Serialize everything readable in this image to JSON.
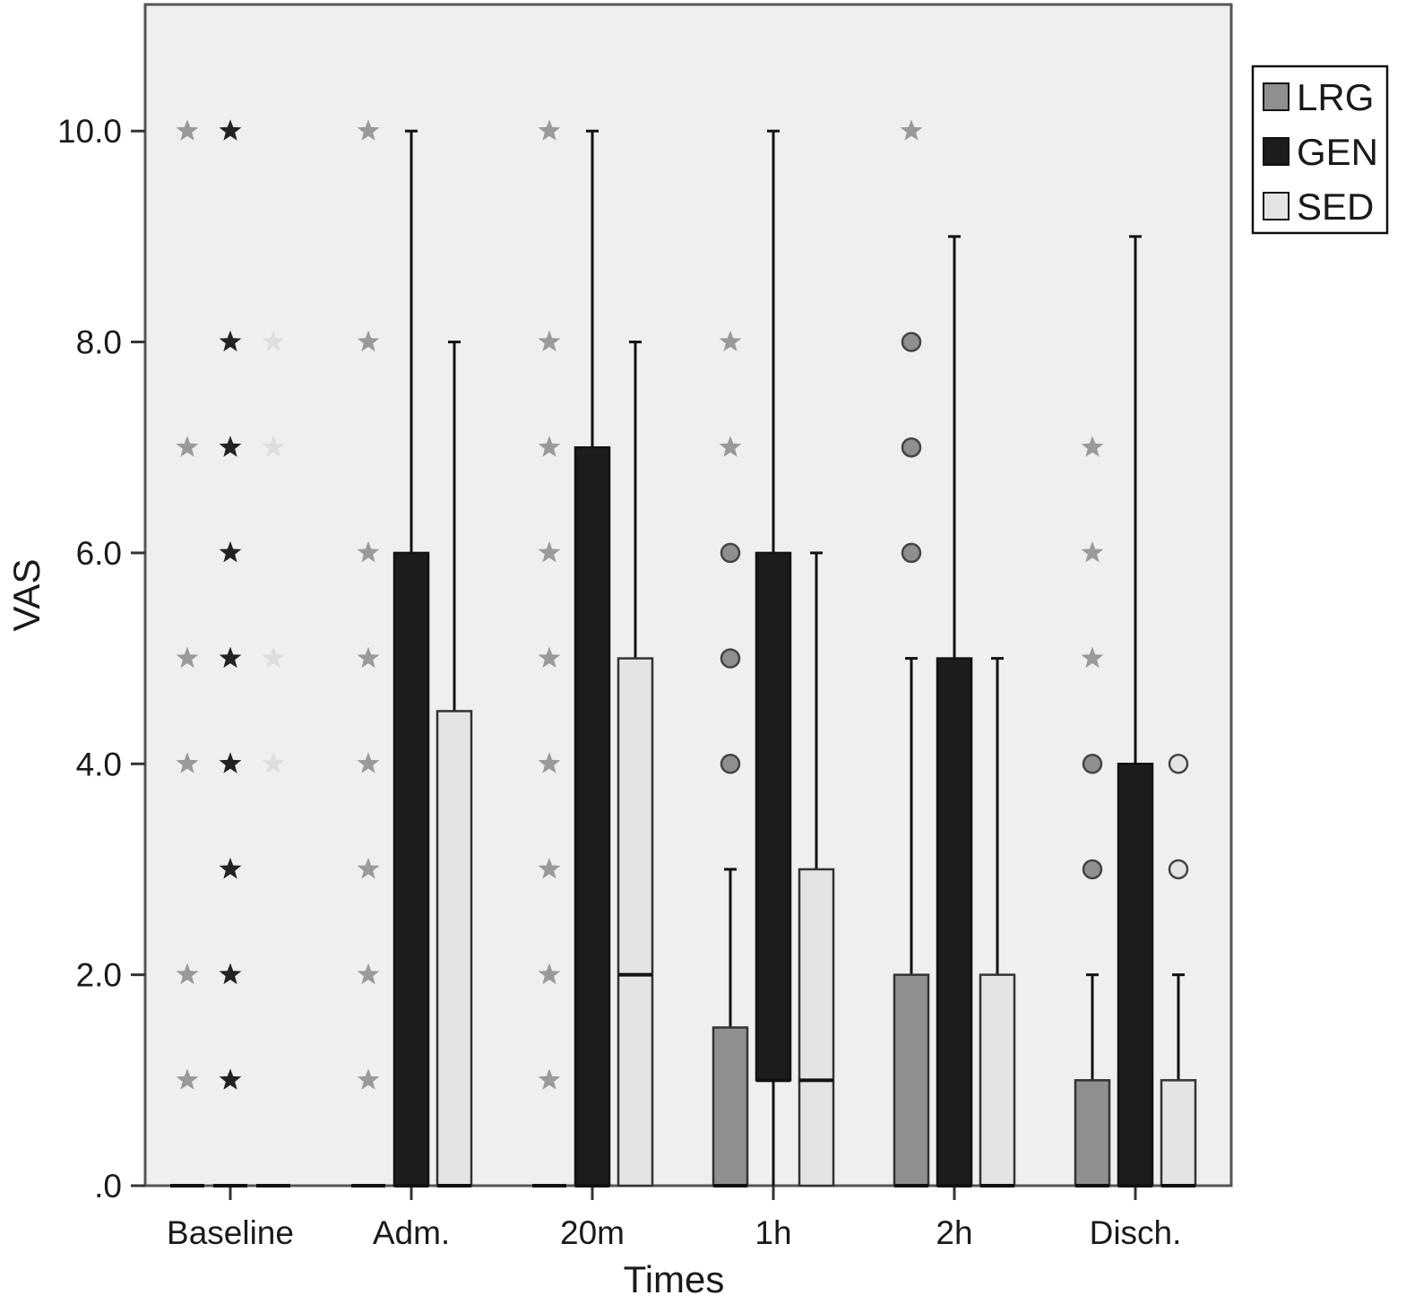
{
  "chart_data": {
    "type": "boxplot",
    "title": "",
    "xlabel": "Times",
    "ylabel": "VAS",
    "ylim": [
      0,
      11.2
    ],
    "yticks": [
      0,
      2,
      4,
      6,
      8,
      10
    ],
    "ytick_labels": [
      ".0",
      "2.0",
      "4.0",
      "6.0",
      "8.0",
      "10.0"
    ],
    "categories": [
      "Baseline",
      "Adm.",
      "20m",
      "1h",
      "2h",
      "Disch."
    ],
    "grid": false,
    "legend": {
      "placement": "right-top"
    },
    "colors": {
      "LRG": "#8f8f8f",
      "GEN": "#1c1c1c",
      "SED": "#e4e4e4",
      "plot_bg": "#efefef"
    },
    "series": [
      {
        "name": "LRG",
        "boxes": [
          {
            "min": 0,
            "q1": 0,
            "median": 0,
            "q3": 0,
            "max": 0,
            "outliers": [],
            "extremes": [
              1,
              2,
              4,
              5,
              7,
              10
            ]
          },
          {
            "min": 0,
            "q1": 0,
            "median": 0,
            "q3": 0,
            "max": 0,
            "outliers": [],
            "extremes": [
              1,
              2,
              3,
              4,
              5,
              6,
              8,
              10
            ]
          },
          {
            "min": 0,
            "q1": 0,
            "median": 0,
            "q3": 0,
            "max": 0,
            "outliers": [],
            "extremes": [
              1,
              2,
              3,
              4,
              5,
              6,
              7,
              8,
              10
            ]
          },
          {
            "min": 0,
            "q1": 0,
            "median": 0,
            "q3": 1.5,
            "max": 3,
            "outliers": [
              4,
              5,
              6
            ],
            "extremes": [
              7,
              8
            ]
          },
          {
            "min": 0,
            "q1": 0,
            "median": 0,
            "q3": 2,
            "max": 5,
            "outliers": [
              6,
              7,
              8
            ],
            "extremes": [
              10
            ]
          },
          {
            "min": 0,
            "q1": 0,
            "median": 0,
            "q3": 1,
            "max": 2,
            "outliers": [
              3,
              4
            ],
            "extremes": [
              5,
              6,
              7
            ]
          }
        ]
      },
      {
        "name": "GEN",
        "boxes": [
          {
            "min": 0,
            "q1": 0,
            "median": 0,
            "q3": 0,
            "max": 0,
            "outliers": [],
            "extremes": [
              1,
              2,
              3,
              4,
              5,
              6,
              7,
              8,
              10
            ]
          },
          {
            "min": 0,
            "q1": 0,
            "median": 0,
            "q3": 6,
            "max": 10,
            "outliers": [],
            "extremes": []
          },
          {
            "min": 0,
            "q1": 0,
            "median": 0,
            "q3": 7,
            "max": 10,
            "outliers": [],
            "extremes": []
          },
          {
            "min": 0,
            "q1": 1,
            "median": 1,
            "q3": 6,
            "max": 10,
            "outliers": [],
            "extremes": []
          },
          {
            "min": 0,
            "q1": 0,
            "median": 0,
            "q3": 5,
            "max": 9,
            "outliers": [],
            "extremes": []
          },
          {
            "min": 0,
            "q1": 0,
            "median": 0,
            "q3": 4,
            "max": 9,
            "outliers": [],
            "extremes": []
          }
        ]
      },
      {
        "name": "SED",
        "boxes": [
          {
            "min": 0,
            "q1": 0,
            "median": 0,
            "q3": 0,
            "max": 0,
            "outliers": [],
            "extremes": [
              4,
              5,
              7,
              8
            ]
          },
          {
            "min": 0,
            "q1": 0,
            "median": 0,
            "q3": 4.5,
            "max": 8,
            "outliers": [],
            "extremes": []
          },
          {
            "min": 0,
            "q1": 0,
            "median": 2,
            "q3": 5,
            "max": 8,
            "outliers": [],
            "extremes": []
          },
          {
            "min": 0,
            "q1": 0,
            "median": 1,
            "q3": 3,
            "max": 6,
            "outliers": [],
            "extremes": []
          },
          {
            "min": 0,
            "q1": 0,
            "median": 0,
            "q3": 2,
            "max": 5,
            "outliers": [],
            "extremes": []
          },
          {
            "min": 0,
            "q1": 0,
            "median": 0,
            "q3": 1,
            "max": 2,
            "outliers": [
              3,
              4
            ],
            "extremes": []
          }
        ]
      }
    ]
  }
}
